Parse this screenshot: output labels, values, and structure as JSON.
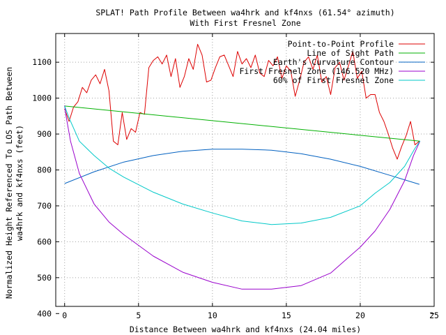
{
  "chart_data": {
    "type": "line",
    "title": "SPLAT! Path Profile Between wa4hrk and kf4nxs (61.54° azimuth)",
    "subtitle": "With First Fresnel Zone",
    "xlabel": "Distance Between wa4hrk and kf4nxs (24.04 miles)",
    "ylabel_line1": "Normalized Height Referenced To LOS Path Between",
    "ylabel_line2": "wa4hrk and kf4nxs (feet)",
    "xlim": [
      -0.6,
      25
    ],
    "ylim": [
      420,
      1180
    ],
    "xticks": [
      0,
      5,
      10,
      15,
      20,
      25
    ],
    "yticks": [
      400,
      500,
      600,
      700,
      800,
      900,
      1000,
      1100
    ],
    "grid": true,
    "legend_position": "top-right",
    "series": [
      {
        "name": "Point-to-Point Profile",
        "color": "#dd0000",
        "x": [
          0,
          0.3,
          0.6,
          0.9,
          1.2,
          1.5,
          1.8,
          2.1,
          2.4,
          2.7,
          3.0,
          3.3,
          3.6,
          3.9,
          4.2,
          4.5,
          4.8,
          5.1,
          5.4,
          5.7,
          6.0,
          6.3,
          6.6,
          6.9,
          7.2,
          7.5,
          7.8,
          8.1,
          8.4,
          8.7,
          9.0,
          9.3,
          9.6,
          9.9,
          10.2,
          10.5,
          10.8,
          11.1,
          11.4,
          11.7,
          12.0,
          12.3,
          12.6,
          12.9,
          13.2,
          13.5,
          13.8,
          14.1,
          14.4,
          14.7,
          15.0,
          15.3,
          15.6,
          15.9,
          16.2,
          16.5,
          16.8,
          17.1,
          17.4,
          17.7,
          18.0,
          18.3,
          18.6,
          18.9,
          19.2,
          19.5,
          19.8,
          20.1,
          20.4,
          20.7,
          21.0,
          21.3,
          21.6,
          21.9,
          22.2,
          22.5,
          22.8,
          23.1,
          23.4,
          23.7,
          24.0
        ],
        "values": [
          970,
          935,
          975,
          990,
          1030,
          1015,
          1050,
          1065,
          1040,
          1080,
          1020,
          880,
          870,
          960,
          885,
          915,
          905,
          960,
          955,
          1085,
          1105,
          1115,
          1095,
          1120,
          1060,
          1110,
          1030,
          1060,
          1110,
          1080,
          1150,
          1120,
          1045,
          1050,
          1085,
          1115,
          1120,
          1090,
          1060,
          1130,
          1095,
          1110,
          1085,
          1120,
          1070,
          1060,
          1105,
          1090,
          1115,
          1055,
          1090,
          1075,
          1005,
          1050,
          1100,
          1115,
          1080,
          1120,
          1045,
          1060,
          1010,
          1085,
          1100,
          1050,
          1090,
          1130,
          1055,
          1075,
          1000,
          1010,
          1010,
          960,
          935,
          900,
          860,
          830,
          865,
          895,
          935,
          870,
          880
        ]
      },
      {
        "name": "Line of Sight Path",
        "color": "#00b000",
        "x": [
          0,
          24.04
        ],
        "values": [
          978,
          880
        ]
      },
      {
        "name": "Earth's Curvature Contour",
        "color": "#0060c0",
        "x": [
          0,
          2,
          4,
          6,
          8,
          10,
          12,
          14,
          16,
          18,
          20,
          22,
          24
        ],
        "values": [
          762,
          795,
          822,
          840,
          852,
          858,
          858,
          855,
          845,
          830,
          810,
          785,
          760
        ]
      },
      {
        "name": "First Fresnel Zone (146.520 MHz)",
        "color": "#9900cc",
        "x": [
          0,
          0.1,
          0.4,
          1,
          2,
          3,
          4,
          6,
          8,
          10,
          12,
          14,
          16,
          18,
          20,
          21,
          22,
          23,
          23.6,
          24.04
        ],
        "values": [
          980,
          950,
          880,
          790,
          705,
          655,
          620,
          560,
          515,
          487,
          468,
          468,
          478,
          513,
          585,
          630,
          690,
          770,
          840,
          880
        ]
      },
      {
        "name": "60% of First Fresnel Zone",
        "color": "#00c8c8",
        "x": [
          0,
          0.3,
          1,
          2,
          3,
          4,
          6,
          8,
          10,
          12,
          14,
          16,
          18,
          20,
          21,
          22,
          23,
          23.7,
          24.04
        ],
        "values": [
          978,
          945,
          880,
          840,
          805,
          780,
          738,
          705,
          680,
          658,
          648,
          652,
          668,
          700,
          735,
          765,
          810,
          860,
          880
        ]
      }
    ]
  }
}
